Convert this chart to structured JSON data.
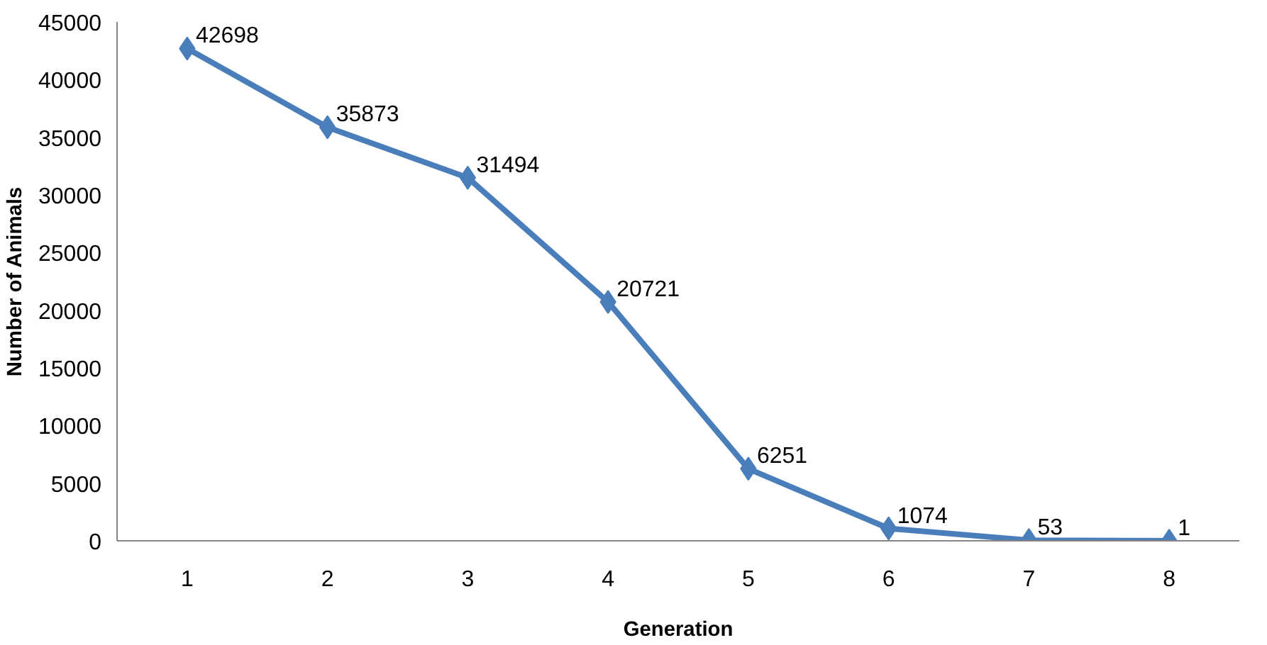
{
  "chart_data": {
    "type": "line",
    "xlabel": "Generation",
    "ylabel": "Number of Animals",
    "categories": [
      "1",
      "2",
      "3",
      "4",
      "5",
      "6",
      "7",
      "8"
    ],
    "series": [
      {
        "color": "#4a7ebb",
        "values": [
          42698,
          35873,
          31494,
          20721,
          6251,
          1074,
          53,
          1
        ]
      }
    ],
    "ylim": [
      0,
      45000
    ],
    "yticks": [
      0,
      5000,
      10000,
      15000,
      20000,
      25000,
      30000,
      35000,
      40000,
      45000
    ],
    "grid": false,
    "marker": "diamond",
    "line_style": "solid",
    "data_labels": true
  }
}
